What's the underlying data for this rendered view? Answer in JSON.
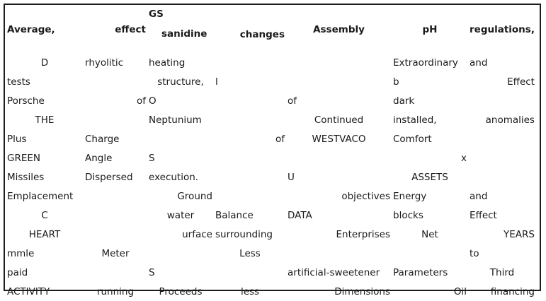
{
  "header": {
    "col1": "Average,",
    "col2": "effect",
    "col3_top": "GS",
    "col3_bottom": "sanidine",
    "col4": "changes",
    "col5": "Assembly",
    "col6": "pH",
    "col7": "regulations,"
  },
  "rows": [
    [
      "D",
      "rhyolitic",
      "heating",
      "",
      "",
      "Extraordinary",
      "and"
    ],
    [
      "tests",
      "",
      "structure,",
      "l",
      "",
      "b",
      "Effect"
    ],
    [
      "Porsche",
      "of",
      "O",
      "",
      "of",
      "dark",
      ""
    ],
    [
      "THE",
      "",
      "Neptunium",
      "",
      "Continued",
      "installed,",
      "anomalies"
    ],
    [
      "Plus",
      "Charge",
      "",
      "of",
      "WESTVACO",
      "Comfort",
      ""
    ],
    [
      "GREEN",
      "Angle",
      "S",
      "",
      "",
      "x",
      ""
    ],
    [
      "Missiles",
      "Dispersed",
      "execution.",
      "",
      "U",
      "ASSETS",
      ""
    ],
    [
      "Emplacement",
      "",
      "Ground",
      "",
      "objectives",
      "Energy",
      "and"
    ],
    [
      "C",
      "",
      "water",
      "Balance",
      "DATA",
      "blocks",
      "Effect"
    ],
    [
      "HEART",
      "",
      "urface",
      "surrounding",
      "Enterprises",
      "Net",
      "YEARS"
    ],
    [
      "mmle",
      "Meter",
      "",
      "Less",
      "",
      "",
      "to"
    ],
    [
      "paid",
      "",
      "S",
      "",
      "artificial-sweetener",
      "Parameters",
      "Third"
    ],
    [
      "ACTIVITY",
      "running",
      "Proceeds",
      "less",
      "Dimensions",
      "Oil",
      "financing"
    ]
  ]
}
